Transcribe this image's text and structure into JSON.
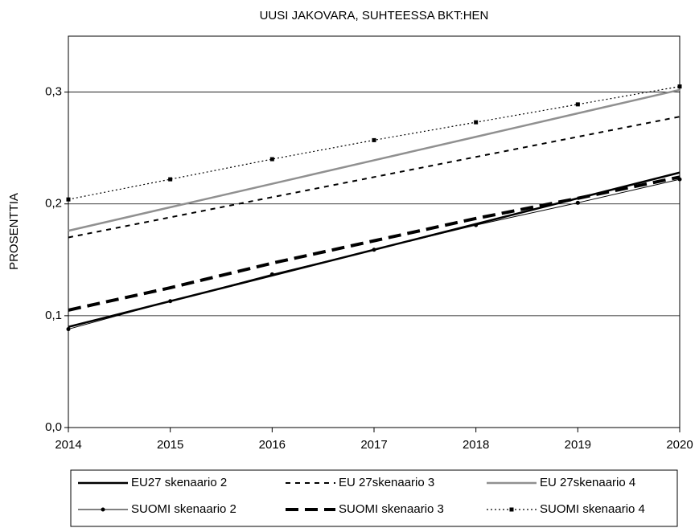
{
  "chart_data": {
    "type": "line",
    "title": "UUSI JAKOVARA, SUHTEESSA BKT:HEN",
    "y_label": "PROSENTTIA",
    "x": [
      2014,
      2015,
      2016,
      2017,
      2018,
      2019,
      2020
    ],
    "xlim": [
      2014,
      2020
    ],
    "xticks": [
      2014,
      2015,
      2016,
      2017,
      2018,
      2019,
      2020
    ],
    "ylim": [
      0,
      0.35
    ],
    "yticks": [
      {
        "value": 0,
        "label": "0,0"
      },
      {
        "value": 0.1,
        "label": "0,1"
      },
      {
        "value": 0.2,
        "label": "0,2"
      },
      {
        "value": 0.3,
        "label": "0,3"
      }
    ],
    "grid": true,
    "legend": "bottom",
    "series": [
      {
        "name": "EU27 skenaario 2",
        "color": "#000000",
        "width": 2.5,
        "values": [
          0.09,
          0.113,
          0.136,
          0.159,
          0.182,
          0.205,
          0.228
        ]
      },
      {
        "name": "EU 27skenaario 3",
        "color": "#000000",
        "width": 2,
        "dash": "6,6",
        "values": [
          0.17,
          0.188,
          0.206,
          0.224,
          0.242,
          0.26,
          0.278
        ]
      },
      {
        "name": "EU 27skenaario 4",
        "color": "#909090",
        "width": 2.5,
        "values": [
          0.176,
          0.197,
          0.218,
          0.239,
          0.26,
          0.281,
          0.302
        ]
      },
      {
        "name": "SUOMI skenaario 2",
        "color": "#000000",
        "width": 1,
        "marker": "circle",
        "values": [
          0.088,
          0.113,
          0.137,
          0.159,
          0.181,
          0.201,
          0.222
        ]
      },
      {
        "name": "SUOMI skenaario 3",
        "color": "#000000",
        "width": 4,
        "dash": "16,8",
        "values": [
          0.105,
          0.125,
          0.147,
          0.167,
          0.187,
          0.205,
          0.224
        ]
      },
      {
        "name": "SUOMI skenaario 4",
        "color": "#000000",
        "width": 1.2,
        "dash": "2,3",
        "marker": "square",
        "values": [
          0.204,
          0.222,
          0.24,
          0.257,
          0.273,
          0.289,
          0.305
        ]
      }
    ]
  }
}
